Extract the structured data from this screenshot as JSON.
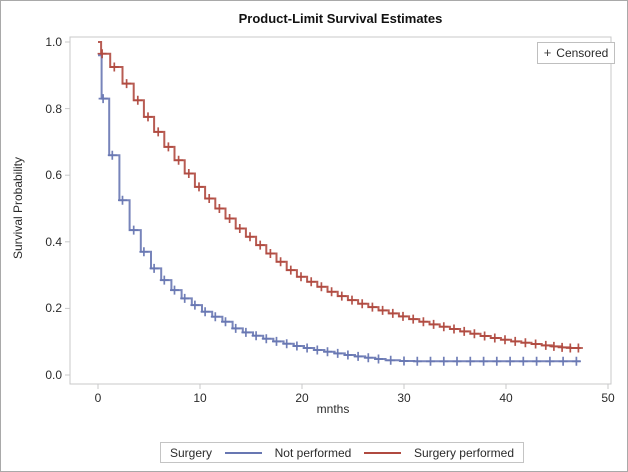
{
  "chart_data": {
    "type": "line",
    "subtype": "kaplan-meier-step-survival",
    "title": "Product-Limit Survival Estimates",
    "xlabel": "mnths",
    "ylabel": "Survival Probability",
    "xlim": [
      0,
      50
    ],
    "ylim": [
      0.0,
      1.0
    ],
    "xticks": [
      0,
      10,
      20,
      30,
      40,
      50
    ],
    "xticklabels": [
      "0",
      "10",
      "20",
      "30",
      "40",
      "50"
    ],
    "yticks": [
      0.0,
      0.2,
      0.4,
      0.6,
      0.8,
      1.0
    ],
    "yticklabels": [
      "0.0",
      "0.2",
      "0.4",
      "0.6",
      "0.8",
      "1.0"
    ],
    "grid": false,
    "inner_legend": {
      "marker": "+",
      "label": "Censored",
      "position": "top-right-inside"
    },
    "legend": {
      "title": "Surgery",
      "position": "bottom-center",
      "entries": [
        {
          "label": "Not performed",
          "color": "#6877b2"
        },
        {
          "label": "Surgery performed",
          "color": "#b04a40"
        }
      ]
    },
    "series": [
      {
        "name": "Not performed",
        "color": "#6877b2",
        "steps": [
          [
            0,
            0.96
          ],
          [
            0.35,
            0.83
          ],
          [
            1.1,
            0.66
          ],
          [
            2.1,
            0.525
          ],
          [
            3.1,
            0.435
          ],
          [
            4.2,
            0.37
          ],
          [
            5.2,
            0.32
          ],
          [
            6.2,
            0.285
          ],
          [
            7.2,
            0.255
          ],
          [
            8.2,
            0.23
          ],
          [
            9.2,
            0.21
          ],
          [
            10.2,
            0.19
          ],
          [
            11.2,
            0.175
          ],
          [
            12.2,
            0.16
          ],
          [
            13.2,
            0.14
          ],
          [
            14.2,
            0.128
          ],
          [
            15.2,
            0.118
          ],
          [
            16.2,
            0.109
          ],
          [
            17.2,
            0.101
          ],
          [
            18.2,
            0.094
          ],
          [
            19.2,
            0.087
          ],
          [
            20.2,
            0.081
          ],
          [
            21.2,
            0.075
          ],
          [
            22.2,
            0.07
          ],
          [
            23.2,
            0.065
          ],
          [
            24.2,
            0.06
          ],
          [
            25.2,
            0.056
          ],
          [
            26.2,
            0.052
          ],
          [
            27.2,
            0.048
          ],
          [
            28.2,
            0.044
          ],
          [
            29.6,
            0.042
          ],
          [
            31,
            0.041
          ],
          [
            47.3,
            0.041
          ]
        ],
        "censor_times": [
          0.5,
          1.4,
          2.4,
          3.5,
          4.5,
          5.5,
          6.5,
          7.5,
          8.5,
          9.5,
          10.5,
          11.5,
          12.5,
          13.5,
          14.5,
          15.5,
          16.5,
          17.5,
          18.5,
          19.5,
          20.5,
          21.5,
          22.5,
          23.5,
          24.5,
          25.5,
          26.5,
          27.5,
          28.7,
          30,
          31.3,
          32.6,
          33.9,
          35.2,
          36.5,
          37.8,
          39.1,
          40.4,
          41.7,
          43,
          44.3,
          45.6,
          46.9
        ]
      },
      {
        "name": "Surgery performed",
        "color": "#b04a40",
        "steps": [
          [
            0,
            1.0
          ],
          [
            0.3,
            0.965
          ],
          [
            1.2,
            0.925
          ],
          [
            2.4,
            0.875
          ],
          [
            3.5,
            0.825
          ],
          [
            4.5,
            0.775
          ],
          [
            5.5,
            0.73
          ],
          [
            6.5,
            0.685
          ],
          [
            7.5,
            0.645
          ],
          [
            8.5,
            0.605
          ],
          [
            9.5,
            0.565
          ],
          [
            10.5,
            0.53
          ],
          [
            11.5,
            0.5
          ],
          [
            12.5,
            0.47
          ],
          [
            13.5,
            0.44
          ],
          [
            14.5,
            0.415
          ],
          [
            15.5,
            0.39
          ],
          [
            16.5,
            0.365
          ],
          [
            17.5,
            0.34
          ],
          [
            18.5,
            0.315
          ],
          [
            19.5,
            0.295
          ],
          [
            20.5,
            0.28
          ],
          [
            21.5,
            0.265
          ],
          [
            22.5,
            0.25
          ],
          [
            23.5,
            0.237
          ],
          [
            24.5,
            0.225
          ],
          [
            25.5,
            0.214
          ],
          [
            26.5,
            0.204
          ],
          [
            27.5,
            0.194
          ],
          [
            28.5,
            0.185
          ],
          [
            29.5,
            0.176
          ],
          [
            30.5,
            0.168
          ],
          [
            31.5,
            0.16
          ],
          [
            32.5,
            0.152
          ],
          [
            33.5,
            0.145
          ],
          [
            34.5,
            0.138
          ],
          [
            35.5,
            0.131
          ],
          [
            36.5,
            0.124
          ],
          [
            37.5,
            0.117
          ],
          [
            38.5,
            0.111
          ],
          [
            39.5,
            0.106
          ],
          [
            40.5,
            0.101
          ],
          [
            41.5,
            0.097
          ],
          [
            42.5,
            0.093
          ],
          [
            43.5,
            0.089
          ],
          [
            44.5,
            0.086
          ],
          [
            45.5,
            0.083
          ],
          [
            46.3,
            0.081
          ],
          [
            47.3,
            0.081
          ]
        ],
        "censor_times": [
          0.4,
          1.6,
          2.8,
          3.9,
          4.9,
          5.9,
          6.9,
          7.9,
          8.9,
          9.9,
          10.9,
          11.9,
          12.9,
          13.9,
          14.9,
          15.9,
          16.9,
          17.9,
          18.9,
          19.9,
          20.9,
          21.9,
          22.9,
          23.9,
          24.9,
          25.9,
          26.9,
          27.9,
          28.9,
          29.9,
          30.9,
          31.9,
          32.9,
          33.9,
          34.9,
          35.9,
          36.9,
          37.9,
          38.9,
          39.9,
          40.9,
          41.9,
          42.9,
          43.9,
          44.7,
          45.5,
          46.3,
          47.1
        ]
      }
    ]
  },
  "colors": {
    "frame": "#c8c9ca",
    "tick": "#c8c9ca",
    "text": "#2b2b2b",
    "background": "#ffffff",
    "outer_border": "#a9a9a9"
  }
}
